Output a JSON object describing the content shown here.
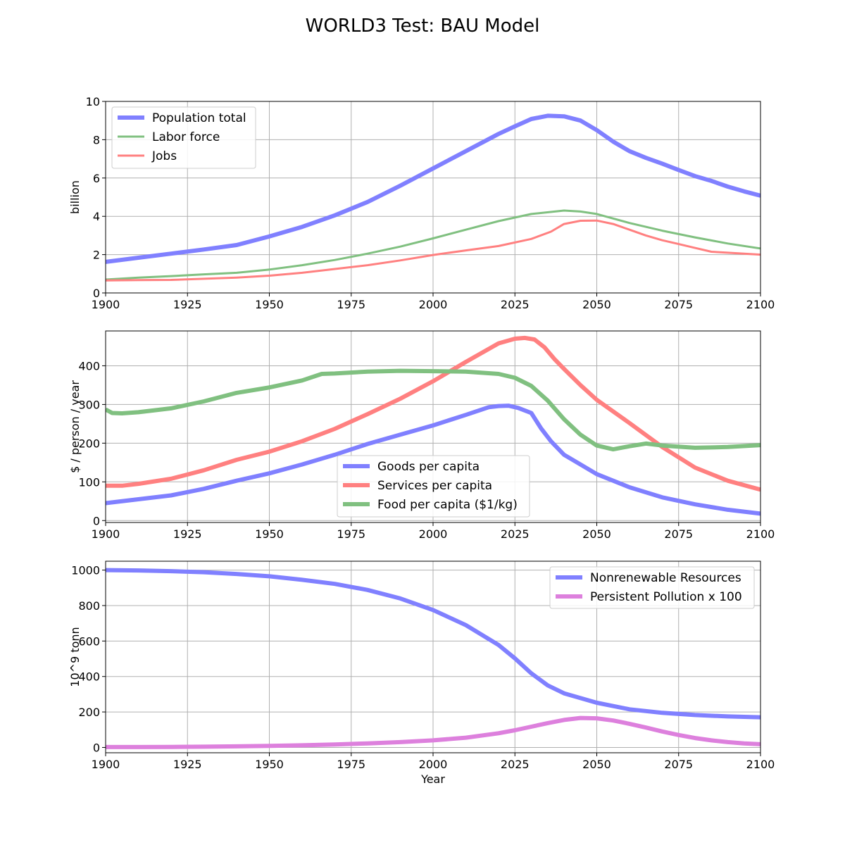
{
  "figure": {
    "title": "WORLD3 Test: BAU Model"
  },
  "chart_data": [
    {
      "type": "line",
      "title": "",
      "xlabel": "",
      "ylabel": "billion",
      "xlim": [
        1900,
        2100
      ],
      "ylim": [
        0,
        10
      ],
      "xticks": [
        1900,
        1925,
        1950,
        1975,
        2000,
        2025,
        2050,
        2075,
        2100
      ],
      "yticks": [
        0,
        2,
        4,
        6,
        8,
        10
      ],
      "grid": true,
      "legend": "top-left",
      "series": [
        {
          "name": "Population total",
          "color": "#8080ff",
          "width": 6,
          "x": [
            1900,
            1910,
            1920,
            1930,
            1940,
            1950,
            1960,
            1970,
            1980,
            1990,
            2000,
            2010,
            2020,
            2025,
            2030,
            2035,
            2040,
            2045,
            2050,
            2055,
            2060,
            2065,
            2070,
            2075,
            2080,
            2085,
            2090,
            2095,
            2100
          ],
          "y": [
            1.62,
            1.84,
            2.05,
            2.27,
            2.5,
            2.95,
            3.45,
            4.05,
            4.75,
            5.6,
            6.5,
            7.4,
            8.3,
            8.7,
            9.08,
            9.25,
            9.22,
            9.0,
            8.5,
            7.9,
            7.4,
            7.05,
            6.75,
            6.42,
            6.1,
            5.85,
            5.55,
            5.3,
            5.08
          ]
        },
        {
          "name": "Labor force",
          "color": "#80c080",
          "width": 3,
          "x": [
            1900,
            1910,
            1920,
            1930,
            1940,
            1950,
            1960,
            1970,
            1980,
            1990,
            2000,
            2010,
            2020,
            2030,
            2040,
            2045,
            2050,
            2060,
            2070,
            2080,
            2090,
            2100
          ],
          "y": [
            0.7,
            0.8,
            0.88,
            0.97,
            1.05,
            1.22,
            1.45,
            1.72,
            2.05,
            2.42,
            2.85,
            3.3,
            3.75,
            4.12,
            4.3,
            4.25,
            4.12,
            3.65,
            3.25,
            2.9,
            2.58,
            2.32
          ]
        },
        {
          "name": "Jobs",
          "color": "#ff8080",
          "width": 3,
          "x": [
            1900,
            1910,
            1920,
            1930,
            1940,
            1950,
            1960,
            1970,
            1980,
            1990,
            2000,
            2010,
            2020,
            2030,
            2036,
            2040,
            2045,
            2050,
            2055,
            2060,
            2065,
            2070,
            2075,
            2080,
            2085,
            2090,
            2095,
            2100
          ],
          "y": [
            0.65,
            0.67,
            0.68,
            0.74,
            0.8,
            0.9,
            1.05,
            1.25,
            1.45,
            1.7,
            1.98,
            2.22,
            2.45,
            2.82,
            3.2,
            3.6,
            3.77,
            3.78,
            3.6,
            3.3,
            3.0,
            2.75,
            2.55,
            2.35,
            2.15,
            2.1,
            2.05,
            2.0
          ]
        }
      ]
    },
    {
      "type": "line",
      "title": "",
      "xlabel": "",
      "ylabel": "$ / person / year",
      "xlim": [
        1900,
        2100
      ],
      "ylim": [
        -5,
        490
      ],
      "xticks": [
        1900,
        1925,
        1950,
        1975,
        2000,
        2025,
        2050,
        2075,
        2100
      ],
      "yticks": [
        0,
        100,
        200,
        300,
        400
      ],
      "grid": true,
      "legend": "lower-center",
      "series": [
        {
          "name": "Goods per capita",
          "color": "#8080ff",
          "width": 6,
          "x": [
            1900,
            1910,
            1920,
            1930,
            1940,
            1950,
            1960,
            1970,
            1980,
            1990,
            2000,
            2010,
            2017,
            2020,
            2023,
            2026,
            2030,
            2033,
            2036,
            2040,
            2045,
            2050,
            2060,
            2070,
            2080,
            2090,
            2100
          ],
          "y": [
            45,
            55,
            65,
            82,
            103,
            122,
            145,
            170,
            198,
            222,
            246,
            273,
            293,
            296,
            297,
            291,
            278,
            238,
            205,
            170,
            145,
            120,
            86,
            60,
            42,
            28,
            18
          ]
        },
        {
          "name": "Services per capita",
          "color": "#ff8080",
          "width": 6,
          "x": [
            1900,
            1905,
            1910,
            1920,
            1930,
            1940,
            1950,
            1960,
            1970,
            1980,
            1990,
            2000,
            2010,
            2020,
            2025,
            2028,
            2031,
            2034,
            2037,
            2040,
            2045,
            2050,
            2060,
            2070,
            2080,
            2090,
            2100
          ],
          "y": [
            90,
            90,
            95,
            108,
            130,
            157,
            178,
            205,
            237,
            275,
            315,
            360,
            410,
            458,
            470,
            472,
            468,
            448,
            418,
            392,
            350,
            312,
            252,
            190,
            137,
            103,
            80
          ]
        },
        {
          "name": "Food per capita ($1/kg)",
          "color": "#80c080",
          "width": 6,
          "x": [
            1900,
            1902,
            1905,
            1910,
            1920,
            1930,
            1940,
            1950,
            1960,
            1966,
            1970,
            1980,
            1990,
            2000,
            2010,
            2020,
            2025,
            2030,
            2035,
            2040,
            2045,
            2050,
            2055,
            2060,
            2065,
            2070,
            2080,
            2090,
            2100
          ],
          "y": [
            287,
            278,
            277,
            280,
            290,
            308,
            330,
            344,
            362,
            379,
            380,
            385,
            387,
            386,
            385,
            379,
            369,
            348,
            310,
            262,
            222,
            194,
            184,
            192,
            199,
            194,
            188,
            190,
            195
          ]
        }
      ]
    },
    {
      "type": "line",
      "title": "",
      "xlabel": "Year",
      "ylabel": "10^9 tonn",
      "xlim": [
        1900,
        2100
      ],
      "ylim": [
        -30,
        1050
      ],
      "xticks": [
        1900,
        1925,
        1950,
        1975,
        2000,
        2025,
        2050,
        2075,
        2100
      ],
      "yticks": [
        0,
        200,
        400,
        600,
        800,
        1000
      ],
      "grid": true,
      "legend": "top-right",
      "series": [
        {
          "name": "Nonrenewable Resources",
          "color": "#8080ff",
          "width": 6,
          "x": [
            1900,
            1910,
            1920,
            1930,
            1940,
            1950,
            1960,
            1970,
            1980,
            1990,
            2000,
            2010,
            2020,
            2025,
            2030,
            2035,
            2040,
            2050,
            2060,
            2070,
            2080,
            2090,
            2100
          ],
          "y": [
            1000,
            998,
            994,
            988,
            978,
            965,
            945,
            922,
            888,
            840,
            775,
            690,
            578,
            502,
            418,
            350,
            305,
            252,
            215,
            195,
            183,
            175,
            170
          ]
        },
        {
          "name": "Persistent Pollution x 100",
          "color": "#dd80dd",
          "width": 6,
          "x": [
            1900,
            1910,
            1920,
            1930,
            1940,
            1950,
            1960,
            1970,
            1980,
            1990,
            2000,
            2010,
            2020,
            2025,
            2030,
            2035,
            2040,
            2045,
            2050,
            2055,
            2060,
            2065,
            2070,
            2075,
            2080,
            2085,
            2090,
            2095,
            2100
          ],
          "y": [
            2,
            2,
            3,
            4,
            6,
            9,
            12,
            17,
            23,
            30,
            40,
            55,
            80,
            97,
            117,
            137,
            155,
            166,
            164,
            152,
            133,
            112,
            90,
            70,
            53,
            40,
            30,
            23,
            18
          ]
        }
      ]
    }
  ]
}
